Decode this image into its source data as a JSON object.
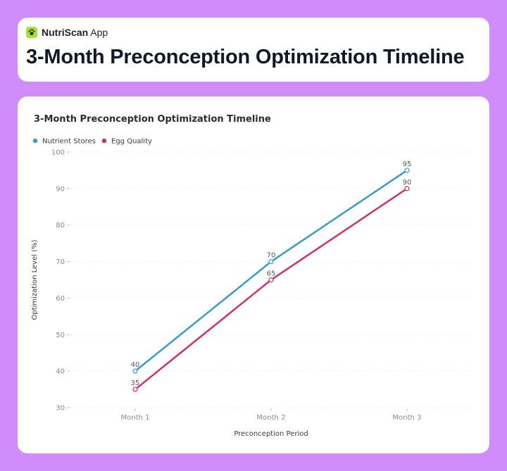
{
  "app": {
    "name_bold": "NutriScan",
    "name_rest": " App",
    "icon": "paw-icon",
    "icon_color": "#a6e22e"
  },
  "header": {
    "title": "3-Month Preconception Optimization Timeline"
  },
  "colors": {
    "background": "#d18cfb",
    "card": "#ffffff"
  },
  "chart_data": {
    "type": "line",
    "title": "3-Month Preconception Optimization Timeline",
    "xlabel": "Preconception Period",
    "ylabel": "Optimization Level (%)",
    "categories": [
      "Month 1",
      "Month 2",
      "Month 3"
    ],
    "ylim": [
      30,
      100
    ],
    "yticks": [
      30,
      40,
      50,
      60,
      70,
      80,
      90,
      100
    ],
    "grid": true,
    "legend_position": "top-left",
    "series": [
      {
        "name": "Nutrient Stores",
        "values": [
          40,
          70,
          95
        ],
        "color": "#3a9ac9"
      },
      {
        "name": "Egg Quality",
        "values": [
          35,
          65,
          90
        ],
        "color": "#c83264"
      }
    ]
  }
}
